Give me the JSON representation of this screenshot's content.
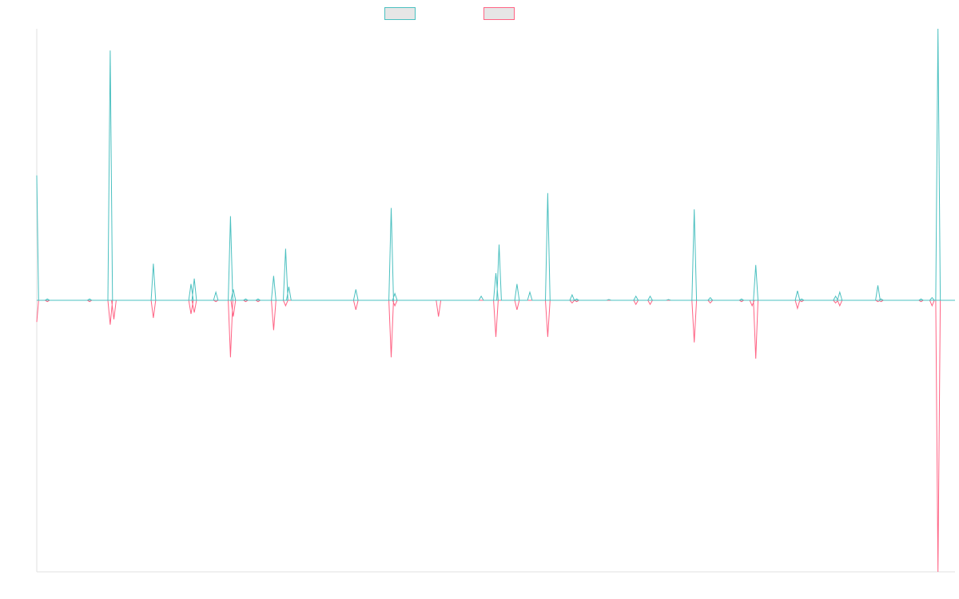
{
  "chart_data": {
    "type": "line",
    "title": "",
    "xlabel": "",
    "ylabel": "",
    "grid": false,
    "legend": "top-center",
    "ylim": [
      -100,
      100
    ],
    "colors": {
      "series_a": "#4bc0c0",
      "series_b": "#ff6384",
      "axis": "#e0e0e0",
      "legend_fill": "#e6e6e6"
    },
    "x": [
      0,
      2,
      4,
      7,
      8,
      10,
      12,
      14,
      16,
      18,
      20,
      22,
      24,
      26,
      28,
      30,
      32,
      34,
      36,
      38,
      40,
      42,
      44,
      46,
      48,
      50,
      52,
      54,
      56,
      58,
      60,
      62,
      64,
      66,
      68,
      70,
      72,
      74,
      76,
      78,
      80,
      82,
      84,
      86,
      88,
      90,
      92,
      94,
      96,
      98,
      100,
      102,
      104,
      106,
      108,
      110,
      112,
      114,
      116,
      118,
      120,
      122,
      124,
      126,
      128,
      130,
      132,
      134,
      136,
      138,
      140,
      142,
      144,
      146,
      148,
      150,
      152,
      154,
      156,
      158,
      160,
      162,
      164,
      166,
      168,
      170,
      172,
      174,
      176,
      178,
      180,
      182,
      184,
      186,
      188,
      190,
      192,
      194,
      196,
      197,
      198,
      200
    ],
    "series": [
      {
        "name": "",
        "values": [
          46,
          0,
          0,
          0,
          0,
          0,
          0,
          0,
          0,
          0,
          0,
          0,
          0,
          0,
          0,
          0,
          0,
          0,
          0,
          0,
          0,
          0,
          0,
          0,
          0,
          0,
          0,
          0,
          0,
          0,
          0,
          0,
          0,
          0,
          0,
          0,
          0,
          0,
          0,
          0,
          0,
          0,
          0,
          0,
          0,
          0,
          0,
          0,
          0,
          0,
          0,
          0,
          0,
          0,
          0,
          0,
          0,
          0,
          0,
          0,
          0,
          0,
          0,
          0,
          0,
          0,
          0,
          0,
          0,
          0,
          0,
          0,
          0,
          0,
          0,
          0,
          0,
          0,
          0,
          0,
          0,
          0,
          0,
          0,
          0,
          0,
          0,
          0,
          0,
          0,
          0,
          0,
          0,
          0,
          0,
          0,
          0,
          0,
          0,
          0,
          0,
          0
        ]
      },
      {
        "name": "",
        "values": [
          -8,
          0,
          0,
          0,
          0,
          0,
          0,
          0,
          0,
          0,
          0,
          0,
          0,
          0,
          0,
          0,
          0,
          0,
          0,
          0,
          0,
          0,
          0,
          0,
          0,
          0,
          0,
          0,
          0,
          0,
          0,
          0,
          0,
          0,
          0,
          0,
          0,
          0,
          0,
          0,
          0,
          0,
          0,
          0,
          0,
          0,
          0,
          0,
          0,
          0,
          0,
          0,
          0,
          0,
          0,
          0,
          0,
          0,
          0,
          0,
          0,
          0,
          0,
          0,
          0,
          0,
          0,
          0,
          0,
          0,
          0,
          0,
          0,
          0,
          0,
          0,
          0,
          0,
          0,
          0,
          0,
          0,
          0,
          0,
          0,
          0,
          0,
          0,
          0,
          0,
          0,
          0,
          0,
          0,
          0,
          0,
          0,
          0,
          0,
          0,
          0,
          0
        ]
      }
    ],
    "spikes": [
      {
        "x": 2.3,
        "a": 0.5,
        "b": -0.5
      },
      {
        "x": 11.5,
        "a": 0.5,
        "b": -0.5
      },
      {
        "x": 16.0,
        "a": 92,
        "b": -9
      },
      {
        "x": 16.8,
        "a": 0,
        "b": -7
      },
      {
        "x": 25.4,
        "a": 13.5,
        "b": -6.5
      },
      {
        "x": 33.6,
        "a": 6,
        "b": -5
      },
      {
        "x": 34.3,
        "a": 8,
        "b": -4.5
      },
      {
        "x": 39.0,
        "a": 3,
        "b": -0.5
      },
      {
        "x": 42.2,
        "a": 31,
        "b": -21
      },
      {
        "x": 42.8,
        "a": 4,
        "b": -6
      },
      {
        "x": 45.5,
        "a": 0.5,
        "b": -0.5
      },
      {
        "x": 48.2,
        "a": 0.5,
        "b": -0.5
      },
      {
        "x": 51.6,
        "a": 9,
        "b": -11
      },
      {
        "x": 54.2,
        "a": 19,
        "b": -2
      },
      {
        "x": 54.9,
        "a": 5,
        "b": 0
      },
      {
        "x": 69.5,
        "a": 4,
        "b": -3.5
      },
      {
        "x": 77.2,
        "a": 34,
        "b": -21
      },
      {
        "x": 78.0,
        "a": 2.5,
        "b": -2
      },
      {
        "x": 87.5,
        "a": 0,
        "b": -6
      },
      {
        "x": 96.8,
        "a": 1.5,
        "b": 0
      },
      {
        "x": 100.0,
        "a": 10,
        "b": -13.5
      },
      {
        "x": 100.7,
        "a": 20.5,
        "b": 0
      },
      {
        "x": 104.6,
        "a": 6,
        "b": -3.5
      },
      {
        "x": 107.4,
        "a": 3,
        "b": 0
      },
      {
        "x": 111.3,
        "a": 39.5,
        "b": -13.5
      },
      {
        "x": 116.6,
        "a": 2,
        "b": -1
      },
      {
        "x": 117.6,
        "a": 0.5,
        "b": -0.5
      },
      {
        "x": 124.6,
        "a": 0.3,
        "b": 0
      },
      {
        "x": 130.5,
        "a": 1.5,
        "b": -1.5
      },
      {
        "x": 133.6,
        "a": 1.5,
        "b": -1.5
      },
      {
        "x": 137.6,
        "a": 0.3,
        "b": 0
      },
      {
        "x": 143.2,
        "a": 33.5,
        "b": -15.5
      },
      {
        "x": 146.7,
        "a": 1,
        "b": -1
      },
      {
        "x": 153.5,
        "a": 0.5,
        "b": -0.5
      },
      {
        "x": 155.8,
        "a": 0,
        "b": -2
      },
      {
        "x": 156.6,
        "a": 13,
        "b": -21.5
      },
      {
        "x": 165.7,
        "a": 3.5,
        "b": -3
      },
      {
        "x": 166.6,
        "a": 0.5,
        "b": -0.5
      },
      {
        "x": 174.0,
        "a": 1.5,
        "b": -1
      },
      {
        "x": 174.9,
        "a": 3,
        "b": -2
      },
      {
        "x": 183.2,
        "a": 5.5,
        "b": -0.5
      },
      {
        "x": 183.9,
        "a": 0.5,
        "b": -0.5
      },
      {
        "x": 192.6,
        "a": 0.5,
        "b": -0.5
      },
      {
        "x": 195.0,
        "a": 1,
        "b": -2
      },
      {
        "x": 196.3,
        "a": 100,
        "b": -100
      }
    ]
  }
}
